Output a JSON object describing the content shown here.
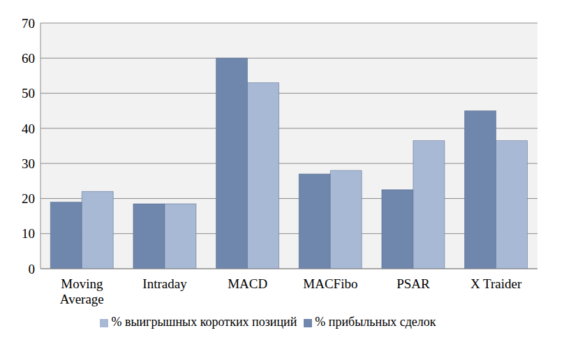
{
  "chart_data": {
    "type": "bar",
    "categories": [
      "Moving Average",
      "Intraday",
      "MACD",
      "MACFibo",
      "PSAR",
      "X Traider"
    ],
    "series": [
      {
        "name": "% прибыльных сделок",
        "color": "#6f87ad",
        "values": [
          19,
          18.5,
          60,
          27,
          22.5,
          45
        ]
      },
      {
        "name": "% выигрышных коротких позиций",
        "color": "#a8b9d6",
        "values": [
          22,
          18.5,
          53,
          28,
          36.5,
          36.5
        ]
      }
    ],
    "ylim": [
      0,
      70
    ],
    "yticks": [
      0,
      10,
      20,
      30,
      40,
      50,
      60,
      70
    ],
    "grid": true,
    "legend": "bottom"
  }
}
